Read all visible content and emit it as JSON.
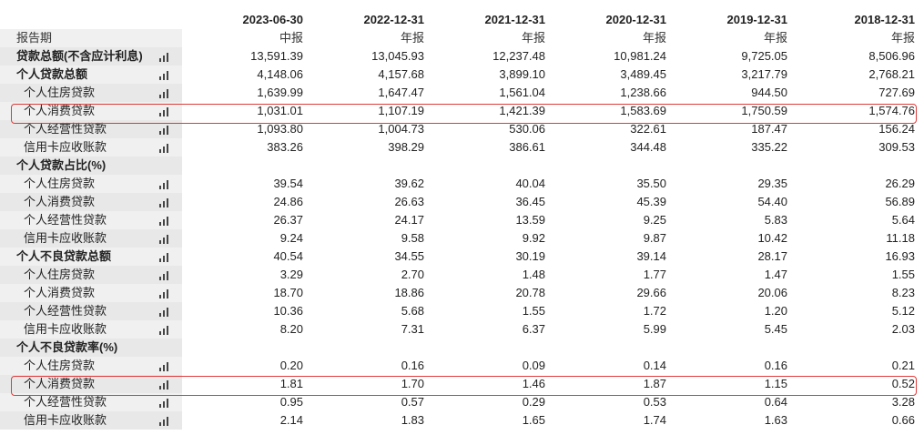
{
  "header": {
    "dates": [
      "2023-06-30",
      "2022-12-31",
      "2021-12-31",
      "2020-12-31",
      "2019-12-31",
      "2018-12-31"
    ]
  },
  "chart_icon": "bar-chart-icon",
  "highlight_color": "#e03a3a",
  "rows": [
    {
      "label": "报告期",
      "style": "plain",
      "icon": false,
      "values": [
        "中报",
        "年报",
        "年报",
        "年报",
        "年报",
        "年报"
      ]
    },
    {
      "label": "贷款总额(不含应计利息)",
      "style": "bold",
      "icon": true,
      "values": [
        "13,591.39",
        "13,045.93",
        "12,237.48",
        "10,981.24",
        "9,725.05",
        "8,506.96"
      ]
    },
    {
      "label": "个人贷款总额",
      "style": "bold",
      "icon": true,
      "values": [
        "4,148.06",
        "4,157.68",
        "3,899.10",
        "3,489.45",
        "3,217.79",
        "2,768.21"
      ]
    },
    {
      "label": "个人住房贷款",
      "style": "sub",
      "icon": true,
      "values": [
        "1,639.99",
        "1,647.47",
        "1,561.04",
        "1,238.66",
        "944.50",
        "727.69"
      ]
    },
    {
      "label": "个人消费贷款",
      "style": "sub",
      "icon": true,
      "values": [
        "1,031.01",
        "1,107.19",
        "1,421.39",
        "1,583.69",
        "1,750.59",
        "1,574.76"
      ]
    },
    {
      "label": "个人经营性贷款",
      "style": "sub",
      "icon": true,
      "values": [
        "1,093.80",
        "1,004.73",
        "530.06",
        "322.61",
        "187.47",
        "156.24"
      ]
    },
    {
      "label": "信用卡应收账款",
      "style": "sub",
      "icon": true,
      "values": [
        "383.26",
        "398.29",
        "386.61",
        "344.48",
        "335.22",
        "309.53"
      ]
    },
    {
      "label": "个人贷款占比(%)",
      "style": "bold",
      "icon": false,
      "values": [
        "",
        "",
        "",
        "",
        "",
        ""
      ]
    },
    {
      "label": "个人住房贷款",
      "style": "sub",
      "icon": true,
      "values": [
        "39.54",
        "39.62",
        "40.04",
        "35.50",
        "29.35",
        "26.29"
      ]
    },
    {
      "label": "个人消费贷款",
      "style": "sub",
      "icon": true,
      "values": [
        "24.86",
        "26.63",
        "36.45",
        "45.39",
        "54.40",
        "56.89"
      ]
    },
    {
      "label": "个人经营性贷款",
      "style": "sub",
      "icon": true,
      "values": [
        "26.37",
        "24.17",
        "13.59",
        "9.25",
        "5.83",
        "5.64"
      ]
    },
    {
      "label": "信用卡应收账款",
      "style": "sub",
      "icon": true,
      "values": [
        "9.24",
        "9.58",
        "9.92",
        "9.87",
        "10.42",
        "11.18"
      ]
    },
    {
      "label": "个人不良贷款总额",
      "style": "bold",
      "icon": true,
      "values": [
        "40.54",
        "34.55",
        "30.19",
        "39.14",
        "28.17",
        "16.93"
      ]
    },
    {
      "label": "个人住房贷款",
      "style": "sub",
      "icon": true,
      "values": [
        "3.29",
        "2.70",
        "1.48",
        "1.77",
        "1.47",
        "1.55"
      ]
    },
    {
      "label": "个人消费贷款",
      "style": "sub",
      "icon": true,
      "values": [
        "18.70",
        "18.86",
        "20.78",
        "29.66",
        "20.06",
        "8.23"
      ]
    },
    {
      "label": "个人经营性贷款",
      "style": "sub",
      "icon": true,
      "values": [
        "10.36",
        "5.68",
        "1.55",
        "1.72",
        "1.20",
        "5.12"
      ]
    },
    {
      "label": "信用卡应收账款",
      "style": "sub",
      "icon": true,
      "values": [
        "8.20",
        "7.31",
        "6.37",
        "5.99",
        "5.45",
        "2.03"
      ]
    },
    {
      "label": "个人不良贷款率(%)",
      "style": "bold",
      "icon": false,
      "values": [
        "",
        "",
        "",
        "",
        "",
        ""
      ]
    },
    {
      "label": "个人住房贷款",
      "style": "sub",
      "icon": true,
      "values": [
        "0.20",
        "0.16",
        "0.09",
        "0.14",
        "0.16",
        "0.21"
      ]
    },
    {
      "label": "个人消费贷款",
      "style": "sub",
      "icon": true,
      "values": [
        "1.81",
        "1.70",
        "1.46",
        "1.87",
        "1.15",
        "0.52"
      ]
    },
    {
      "label": "个人经营性贷款",
      "style": "sub",
      "icon": true,
      "values": [
        "0.95",
        "0.57",
        "0.29",
        "0.53",
        "0.64",
        "3.28"
      ]
    },
    {
      "label": "信用卡应收账款",
      "style": "sub",
      "icon": true,
      "values": [
        "2.14",
        "1.83",
        "1.65",
        "1.74",
        "1.63",
        "0.66"
      ]
    }
  ]
}
